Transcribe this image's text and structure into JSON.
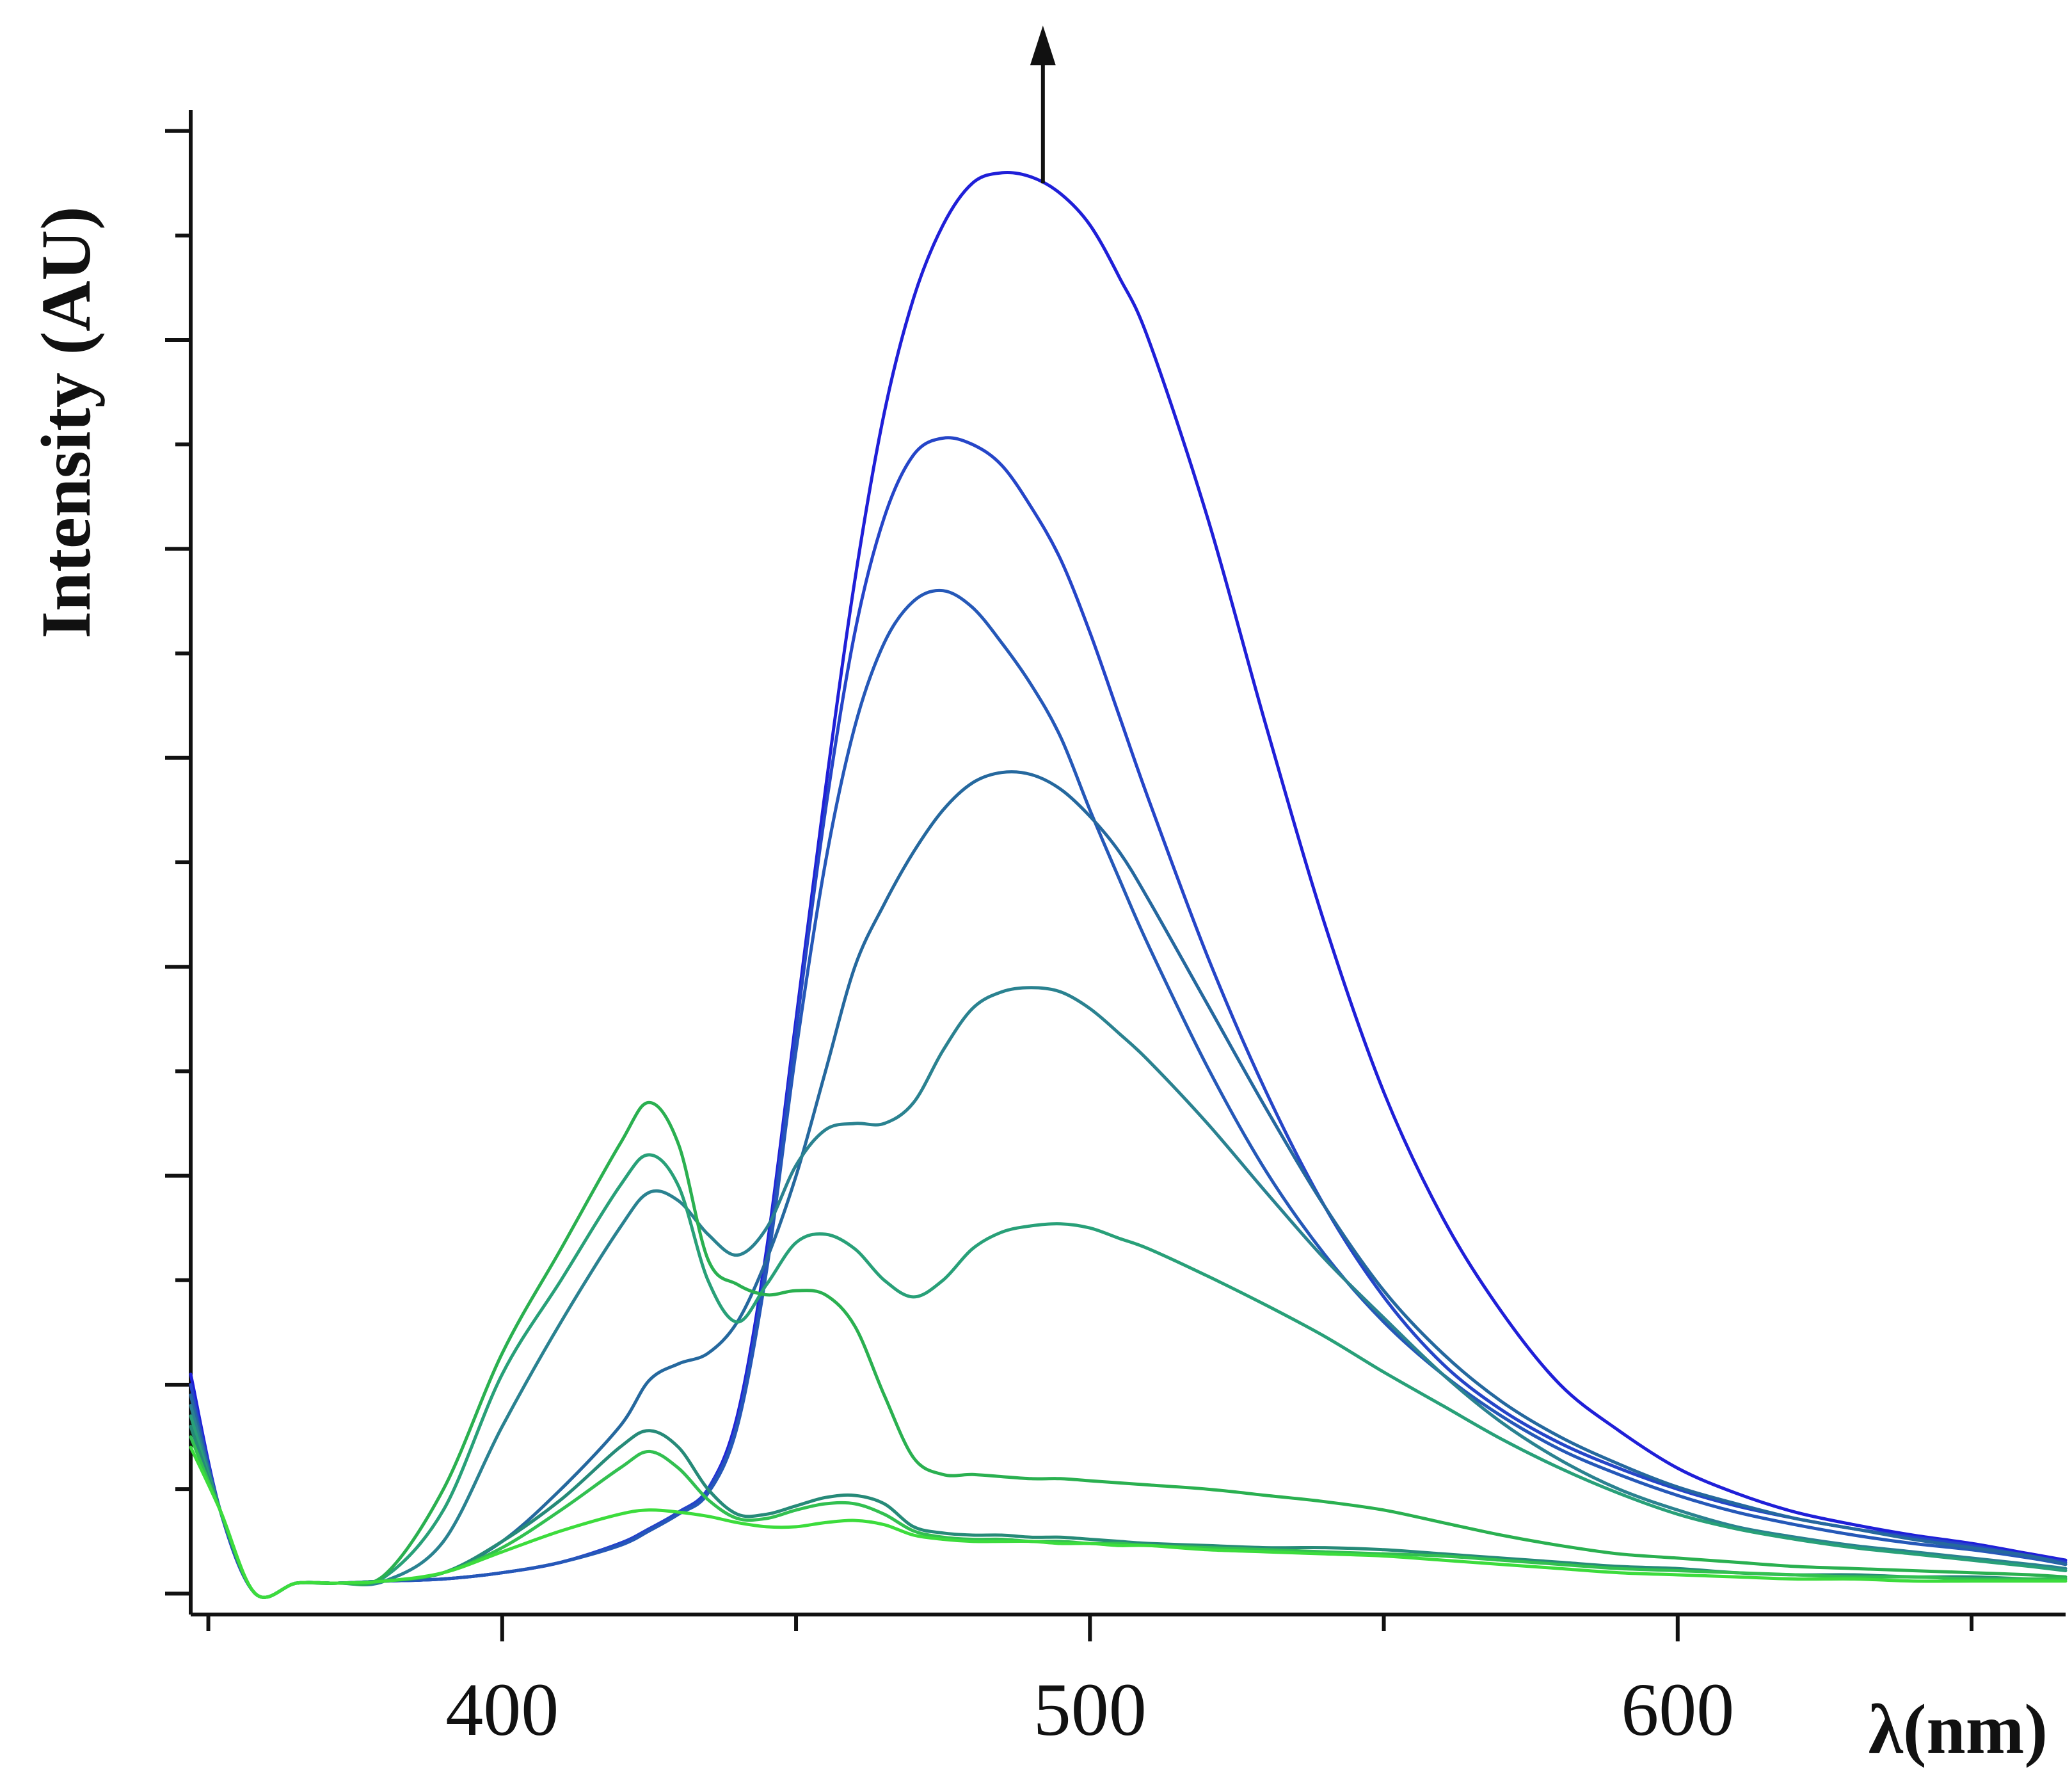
{
  "chart_data": {
    "type": "line",
    "title": "",
    "xlabel": "λ(nm)",
    "ylabel": "Intensity (AU)",
    "xlim": [
      347,
      666
    ],
    "ylim": [
      -0.1,
      7.1
    ],
    "x_ticks": [
      400,
      500,
      600
    ],
    "x_tick_labels": [
      "400",
      "500",
      "600"
    ],
    "x_minor_ticks": [
      350,
      450,
      550,
      650
    ],
    "y_ticks": [
      0,
      0.5,
      1,
      1.5,
      2,
      2.5,
      3,
      3.5,
      4,
      4.5,
      5,
      5.5,
      6,
      6.5,
      7
    ],
    "y_tick_labels_shown": false,
    "grid": false,
    "legend": "none",
    "annotation": "upward arrow at ~492 nm indicating increasing intensity",
    "arrow_x": 492,
    "arrow_from_y": 6.75,
    "arrow_to_y": 7.75,
    "x": [
      347,
      352,
      358,
      365,
      372,
      380,
      390,
      400,
      410,
      420,
      425,
      430,
      435,
      440,
      445,
      450,
      455,
      460,
      465,
      470,
      475,
      480,
      485,
      490,
      495,
      500,
      505,
      510,
      520,
      530,
      540,
      550,
      560,
      570,
      580,
      590,
      600,
      610,
      620,
      630,
      640,
      650,
      660,
      666
    ],
    "series": [
      {
        "name": "S1",
        "color": "#1f1fd8",
        "values": [
          1.05,
          0.4,
          0.0,
          0.05,
          0.05,
          0.06,
          0.07,
          0.1,
          0.15,
          0.24,
          0.31,
          0.39,
          0.5,
          0.85,
          1.65,
          2.75,
          3.85,
          4.85,
          5.65,
          6.2,
          6.55,
          6.75,
          6.8,
          6.78,
          6.7,
          6.55,
          6.3,
          6.0,
          5.15,
          4.15,
          3.2,
          2.4,
          1.8,
          1.35,
          1.0,
          0.78,
          0.6,
          0.48,
          0.39,
          0.33,
          0.28,
          0.24,
          0.19,
          0.16
        ]
      },
      {
        "name": "S2",
        "color": "#2545c8",
        "values": [
          1.0,
          0.4,
          0.0,
          0.05,
          0.05,
          0.06,
          0.07,
          0.1,
          0.15,
          0.24,
          0.31,
          0.39,
          0.5,
          0.82,
          1.6,
          2.7,
          3.75,
          4.6,
          5.15,
          5.45,
          5.53,
          5.5,
          5.4,
          5.2,
          4.95,
          4.6,
          4.2,
          3.8,
          3.05,
          2.4,
          1.85,
          1.42,
          1.1,
          0.88,
          0.72,
          0.6,
          0.5,
          0.42,
          0.36,
          0.31,
          0.27,
          0.23,
          0.18,
          0.15
        ]
      },
      {
        "name": "S3",
        "color": "#2558b8",
        "values": [
          0.95,
          0.4,
          0.0,
          0.05,
          0.05,
          0.06,
          0.07,
          0.1,
          0.15,
          0.23,
          0.3,
          0.38,
          0.48,
          0.8,
          1.55,
          2.6,
          3.5,
          4.15,
          4.55,
          4.75,
          4.8,
          4.72,
          4.55,
          4.35,
          4.1,
          3.75,
          3.42,
          3.1,
          2.52,
          2.02,
          1.62,
          1.3,
          1.05,
          0.85,
          0.69,
          0.57,
          0.47,
          0.39,
          0.33,
          0.28,
          0.24,
          0.21,
          0.17,
          0.14
        ]
      },
      {
        "name": "S4",
        "color": "#25689e",
        "values": [
          0.95,
          0.4,
          0.0,
          0.05,
          0.05,
          0.06,
          0.1,
          0.25,
          0.5,
          0.8,
          1.02,
          1.1,
          1.15,
          1.3,
          1.6,
          2.0,
          2.5,
          3.0,
          3.3,
          3.55,
          3.75,
          3.88,
          3.93,
          3.92,
          3.85,
          3.72,
          3.55,
          3.32,
          2.82,
          2.32,
          1.85,
          1.45,
          1.15,
          0.92,
          0.75,
          0.62,
          0.51,
          0.43,
          0.36,
          0.31,
          0.26,
          0.22,
          0.18,
          0.14
        ]
      },
      {
        "name": "S5",
        "color": "#2a8290",
        "values": [
          0.9,
          0.4,
          0.0,
          0.05,
          0.05,
          0.06,
          0.25,
          0.8,
          1.3,
          1.75,
          1.92,
          1.88,
          1.72,
          1.62,
          1.75,
          2.05,
          2.22,
          2.25,
          2.25,
          2.35,
          2.6,
          2.8,
          2.88,
          2.9,
          2.88,
          2.8,
          2.68,
          2.55,
          2.25,
          1.92,
          1.6,
          1.32,
          1.05,
          0.82,
          0.64,
          0.5,
          0.4,
          0.32,
          0.27,
          0.23,
          0.2,
          0.17,
          0.14,
          0.12
        ]
      },
      {
        "name": "S6",
        "color": "#28a078",
        "values": [
          0.85,
          0.4,
          0.0,
          0.05,
          0.05,
          0.08,
          0.4,
          1.05,
          1.5,
          1.95,
          2.1,
          1.95,
          1.5,
          1.3,
          1.48,
          1.68,
          1.72,
          1.65,
          1.5,
          1.42,
          1.5,
          1.65,
          1.73,
          1.76,
          1.77,
          1.75,
          1.7,
          1.65,
          1.52,
          1.38,
          1.23,
          1.06,
          0.9,
          0.74,
          0.6,
          0.48,
          0.38,
          0.31,
          0.26,
          0.22,
          0.19,
          0.16,
          0.13,
          0.11
        ]
      },
      {
        "name": "S7",
        "color": "#2ab050",
        "values": [
          0.8,
          0.4,
          0.0,
          0.05,
          0.05,
          0.09,
          0.5,
          1.15,
          1.65,
          2.15,
          2.35,
          2.15,
          1.6,
          1.48,
          1.43,
          1.45,
          1.43,
          1.28,
          0.95,
          0.65,
          0.57,
          0.57,
          0.56,
          0.55,
          0.55,
          0.54,
          0.53,
          0.52,
          0.5,
          0.47,
          0.44,
          0.4,
          0.34,
          0.28,
          0.23,
          0.19,
          0.17,
          0.15,
          0.13,
          0.12,
          0.11,
          0.1,
          0.09,
          0.08
        ]
      },
      {
        "name": "S8",
        "color": "#268a78",
        "values": [
          0.8,
          0.4,
          0.0,
          0.05,
          0.05,
          0.06,
          0.1,
          0.25,
          0.45,
          0.7,
          0.78,
          0.7,
          0.5,
          0.38,
          0.38,
          0.42,
          0.46,
          0.47,
          0.43,
          0.32,
          0.29,
          0.28,
          0.28,
          0.27,
          0.27,
          0.26,
          0.25,
          0.24,
          0.23,
          0.22,
          0.22,
          0.21,
          0.19,
          0.17,
          0.15,
          0.13,
          0.12,
          0.1,
          0.09,
          0.09,
          0.08,
          0.08,
          0.07,
          0.07
        ]
      },
      {
        "name": "S9",
        "color": "#32c050",
        "values": [
          0.75,
          0.4,
          0.0,
          0.05,
          0.05,
          0.06,
          0.1,
          0.22,
          0.4,
          0.6,
          0.68,
          0.6,
          0.45,
          0.36,
          0.36,
          0.4,
          0.43,
          0.43,
          0.38,
          0.3,
          0.27,
          0.26,
          0.26,
          0.25,
          0.25,
          0.24,
          0.24,
          0.23,
          0.22,
          0.21,
          0.2,
          0.19,
          0.18,
          0.16,
          0.14,
          0.12,
          0.11,
          0.1,
          0.09,
          0.08,
          0.08,
          0.07,
          0.07,
          0.07
        ]
      },
      {
        "name": "S10",
        "color": "#3cdc3c",
        "values": [
          0.7,
          0.4,
          0.0,
          0.05,
          0.05,
          0.06,
          0.1,
          0.2,
          0.3,
          0.38,
          0.4,
          0.39,
          0.37,
          0.34,
          0.32,
          0.32,
          0.34,
          0.35,
          0.33,
          0.28,
          0.26,
          0.25,
          0.25,
          0.25,
          0.24,
          0.24,
          0.23,
          0.23,
          0.21,
          0.2,
          0.19,
          0.18,
          0.16,
          0.14,
          0.12,
          0.1,
          0.09,
          0.08,
          0.07,
          0.07,
          0.06,
          0.06,
          0.06,
          0.06
        ]
      }
    ]
  }
}
